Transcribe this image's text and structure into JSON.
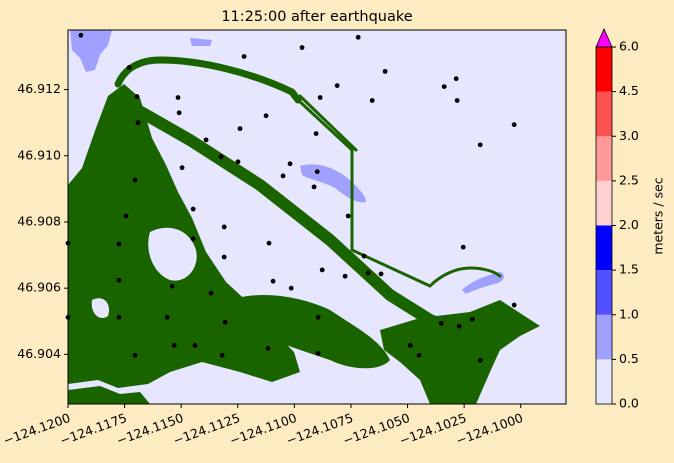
{
  "chart_data": {
    "type": "scatter",
    "title": "11:25:00 after earthquake",
    "color": "#000000",
    "background_color": "#e6e6ff",
    "x": [
      -124.11943,
      -124.1173,
      -124.11222,
      -124.10966,
      -124.10718,
      -124.10599,
      -124.10811,
      -124.10886,
      -124.10656,
      -124.10338,
      -124.10285,
      -124.10281,
      -124.10029,
      -124.10179,
      -124.11514,
      -124.11695,
      -124.11509,
      -124.11691,
      -124.1124,
      -124.11125,
      -124.1139,
      -124.11324,
      -124.11249,
      -124.10904,
      -124.11019,
      -124.1105,
      -124.10899,
      -124.10913,
      -124.10762,
      -124.11496,
      -124.11704,
      -124.11447,
      -124.11744,
      -124.12,
      -124.11775,
      -124.11447,
      -124.1131,
      -124.1131,
      -124.11112,
      -124.10877,
      -124.10776,
      -124.10692,
      -124.10674,
      -124.10617,
      -124.10254,
      -124.11775,
      -124.1154,
      -124.11368,
      -124.11094,
      -124.11014,
      -124.12,
      -124.11775,
      -124.11562,
      -124.11306,
      -124.10895,
      -124.10351,
      -124.10272,
      -124.10214,
      -124.10029,
      -124.11531,
      -124.11439,
      -124.11704,
      -124.11116,
      -124.10895,
      -124.10488,
      -124.10449,
      -124.10179,
      -124.11319
    ],
    "values": [
      46.91364,
      46.91267,
      46.913,
      46.91327,
      46.91358,
      46.91255,
      46.91212,
      46.91176,
      46.91167,
      46.91209,
      46.91233,
      46.91167,
      46.91094,
      46.91033,
      46.91176,
      46.91179,
      46.9113,
      46.911,
      46.91082,
      46.91121,
      46.91048,
      46.90997,
      46.90982,
      46.91067,
      46.90976,
      46.90939,
      46.90952,
      46.90906,
      46.90818,
      46.90964,
      46.90927,
      46.90839,
      46.90818,
      46.90736,
      46.90733,
      46.90749,
      46.90785,
      46.90694,
      46.90736,
      46.90655,
      46.90636,
      46.90697,
      46.90646,
      46.90643,
      46.90724,
      46.90624,
      46.90606,
      46.90585,
      46.90621,
      46.906,
      46.90512,
      46.90512,
      46.90512,
      46.90497,
      46.90512,
      46.90494,
      46.90485,
      46.90506,
      46.90549,
      46.90427,
      46.90427,
      46.90397,
      46.90418,
      46.90403,
      46.90427,
      46.90397,
      46.90382,
      46.90397
    ],
    "xlim": [
      -124.12,
      -124.098
    ],
    "ylim": [
      46.9025,
      46.9138
    ],
    "xticks": [
      {
        "value": -124.12,
        "label": "−124.1200"
      },
      {
        "value": -124.1175,
        "label": "−124.1175"
      },
      {
        "value": -124.115,
        "label": "−124.1150"
      },
      {
        "value": -124.1125,
        "label": "−124.1125"
      },
      {
        "value": -124.11,
        "label": "−124.1100"
      },
      {
        "value": -124.1075,
        "label": "−124.1075"
      },
      {
        "value": -124.105,
        "label": "−124.1050"
      },
      {
        "value": -124.1025,
        "label": "−124.1025"
      },
      {
        "value": -124.1,
        "label": "−124.1000"
      }
    ],
    "yticks": [
      46.904,
      46.906,
      46.908,
      {
        "value": 46.91,
        "label": "46.910"
      },
      46.912
    ],
    "colorbar": {
      "label": "meters / sec",
      "boundaries": [
        0,
        0.5,
        1,
        1.5,
        2,
        2.5,
        3,
        4.5,
        6
      ],
      "colors": [
        "#e6e6ff",
        "#a0a0ff",
        "#5050ff",
        "#0000ff",
        "#ffd0d0",
        "#ff9999",
        "#ff5050",
        "#ff0000"
      ],
      "extend_color": "#ff00ff",
      "ticks": [
        {
          "value": 0,
          "label": "0.0"
        },
        {
          "value": 0.5,
          "label": "0.5"
        },
        {
          "value": 1,
          "label": "1.0"
        },
        {
          "value": 1.5,
          "label": "1.5"
        },
        {
          "value": 2,
          "label": "2.0"
        },
        {
          "value": 2.5,
          "label": "2.5"
        },
        {
          "value": 3,
          "label": "3.0"
        },
        {
          "value": 4.5,
          "label": "4.5"
        },
        {
          "value": 6,
          "label": "6.0"
        }
      ]
    }
  }
}
